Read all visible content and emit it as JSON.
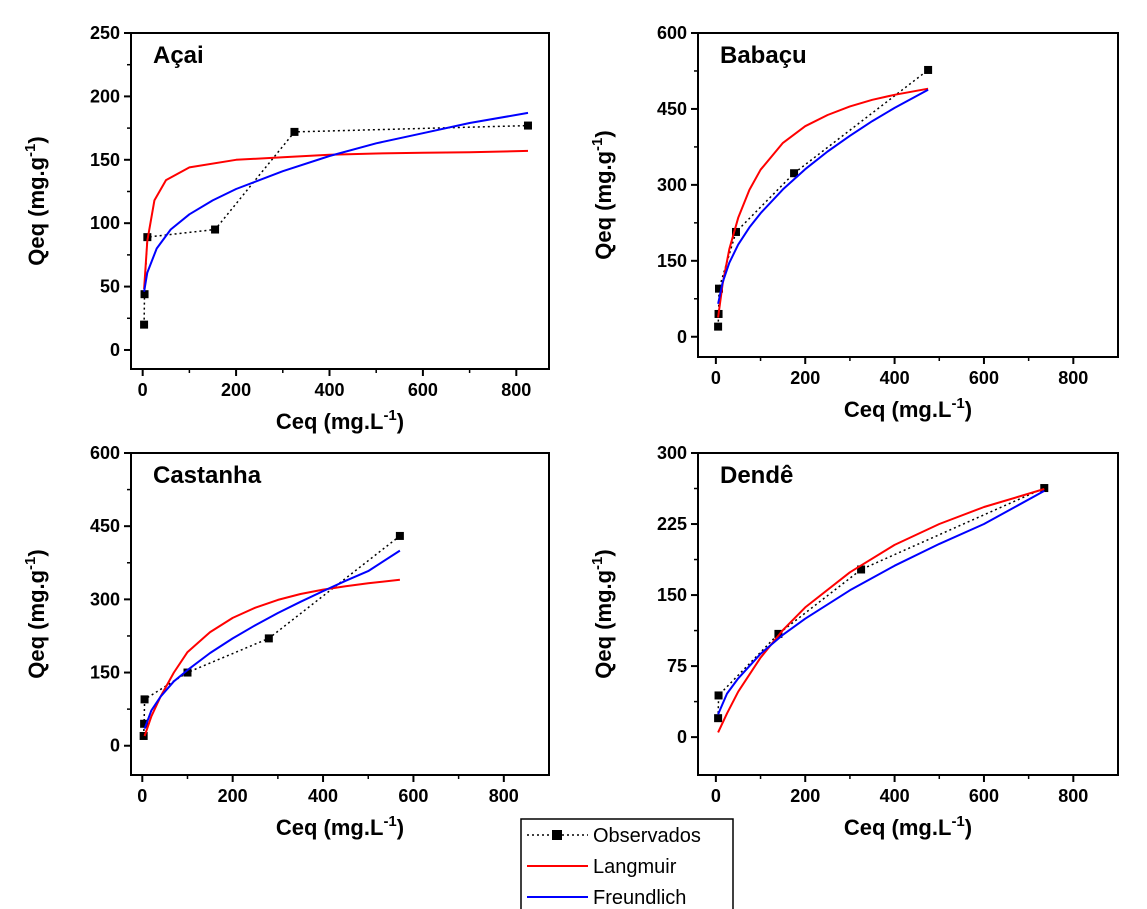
{
  "colors": {
    "observed": "#000000",
    "langmuir": "#ff0000",
    "freundlich": "#0000ff"
  },
  "legend": {
    "placement": "bottom-center",
    "entries": [
      {
        "key": "observed",
        "label": "Observados"
      },
      {
        "key": "langmuir",
        "label": "Langmuir"
      },
      {
        "key": "freundlich",
        "label": "Freundlich"
      }
    ]
  },
  "chart_data": [
    {
      "type": "line",
      "title": "Açai",
      "xlabel": "Ceq (mg.L",
      "xlabel_sup": "-1",
      "xlabel_end": ")",
      "ylabel": "Qeq (mg.g",
      "ylabel_sup": "-1",
      "ylabel_end": ")",
      "xlim": [
        -25,
        870
      ],
      "ylim": [
        -15,
        250
      ],
      "xticks": [
        0,
        200,
        400,
        600,
        800
      ],
      "yticks": [
        0,
        50,
        100,
        150,
        200,
        250
      ],
      "series": [
        {
          "name": "Observados",
          "style": "observed",
          "x": [
            3,
            4,
            10,
            155,
            325,
            825
          ],
          "y": [
            20,
            44,
            89,
            95,
            172,
            177
          ]
        },
        {
          "name": "Langmuir",
          "style": "langmuir",
          "x": [
            3,
            10,
            25,
            50,
            100,
            200,
            300,
            400,
            500,
            600,
            700,
            825
          ],
          "y": [
            48,
            86,
            118,
            134,
            144,
            150,
            152,
            154,
            155,
            155.5,
            156,
            157
          ]
        },
        {
          "name": "Freundlich",
          "style": "freundlich",
          "x": [
            3,
            10,
            30,
            60,
            100,
            150,
            200,
            300,
            400,
            500,
            600,
            700,
            825
          ],
          "y": [
            46,
            61,
            80,
            95,
            107,
            118,
            127,
            141,
            153,
            163,
            171,
            179,
            187
          ]
        }
      ]
    },
    {
      "type": "line",
      "title": "Babaçu",
      "xlabel": "Ceq (mg.L",
      "xlabel_sup": "-1",
      "xlabel_end": ")",
      "ylabel": "Qeq (mg.g",
      "ylabel_sup": "-1",
      "ylabel_end": ")",
      "xlim": [
        -40,
        900
      ],
      "ylim": [
        -40,
        600
      ],
      "xticks": [
        0,
        200,
        400,
        600,
        800
      ],
      "yticks": [
        0,
        150,
        300,
        450,
        600
      ],
      "series": [
        {
          "name": "Observados",
          "style": "observed",
          "x": [
            5,
            6,
            7,
            45,
            175,
            475
          ],
          "y": [
            20,
            45,
            95,
            207,
            323,
            527
          ]
        },
        {
          "name": "Langmuir",
          "style": "langmuir",
          "x": [
            5,
            15,
            30,
            50,
            75,
            100,
            150,
            200,
            250,
            300,
            350,
            400,
            475
          ],
          "y": [
            38,
            104,
            173,
            235,
            290,
            330,
            383,
            416,
            438,
            455,
            468,
            478,
            490
          ]
        },
        {
          "name": "Freundlich",
          "style": "freundlich",
          "x": [
            5,
            15,
            30,
            50,
            75,
            100,
            150,
            200,
            250,
            300,
            350,
            400,
            475
          ],
          "y": [
            65,
            107,
            146,
            182,
            216,
            244,
            291,
            331,
            366,
            397,
            426,
            452,
            488
          ]
        }
      ]
    },
    {
      "type": "line",
      "title": "Castanha",
      "xlabel": "Ceq (mg.L",
      "xlabel_sup": "-1",
      "xlabel_end": ")",
      "ylabel": "Qeq (mg.g",
      "ylabel_sup": "-1",
      "ylabel_end": ")",
      "xlim": [
        -25,
        900
      ],
      "ylim": [
        -60,
        600
      ],
      "xticks": [
        0,
        200,
        400,
        600,
        800
      ],
      "yticks": [
        0,
        150,
        300,
        450,
        600
      ],
      "series": [
        {
          "name": "Observados",
          "style": "observed",
          "x": [
            3,
            4,
            5,
            100,
            280,
            570
          ],
          "y": [
            20,
            45,
            95,
            150,
            220,
            430
          ]
        },
        {
          "name": "Langmuir",
          "style": "langmuir",
          "x": [
            5,
            20,
            40,
            70,
            100,
            150,
            200,
            250,
            300,
            350,
            400,
            450,
            500,
            570
          ],
          "y": [
            20,
            60,
            100,
            150,
            192,
            233,
            262,
            283,
            299,
            311,
            320,
            327,
            333,
            340
          ]
        },
        {
          "name": "Freundlich",
          "style": "freundlich",
          "x": [
            5,
            20,
            40,
            70,
            100,
            150,
            200,
            250,
            300,
            350,
            400,
            450,
            500,
            570
          ],
          "y": [
            35,
            72,
            100,
            132,
            155,
            190,
            220,
            247,
            272,
            295,
            317,
            338,
            358,
            400
          ]
        }
      ]
    },
    {
      "type": "line",
      "title": "Dendê",
      "xlabel": "Ceq (mg.L",
      "xlabel_sup": "-1",
      "xlabel_end": ")",
      "ylabel": "Qeq (mg.g",
      "ylabel_sup": "-1",
      "ylabel_end": ")",
      "xlim": [
        -40,
        900
      ],
      "ylim": [
        -40,
        300
      ],
      "xticks": [
        0,
        200,
        400,
        600,
        800
      ],
      "yticks": [
        0,
        75,
        150,
        225,
        300
      ],
      "series": [
        {
          "name": "Observados",
          "style": "observed",
          "x": [
            5,
            6,
            140,
            325,
            735
          ],
          "y": [
            20,
            44,
            109,
            177,
            263
          ]
        },
        {
          "name": "Langmuir",
          "style": "langmuir",
          "x": [
            5,
            25,
            50,
            100,
            150,
            200,
            300,
            400,
            500,
            600,
            735
          ],
          "y": [
            5,
            25,
            48,
            84,
            113,
            137,
            174,
            203,
            225,
            243,
            262
          ]
        },
        {
          "name": "Freundlich",
          "style": "freundlich",
          "x": [
            5,
            25,
            50,
            100,
            150,
            200,
            300,
            400,
            500,
            600,
            735
          ],
          "y": [
            24,
            46,
            62,
            88,
            108,
            125,
            155,
            181,
            204,
            225,
            260
          ]
        }
      ]
    }
  ]
}
